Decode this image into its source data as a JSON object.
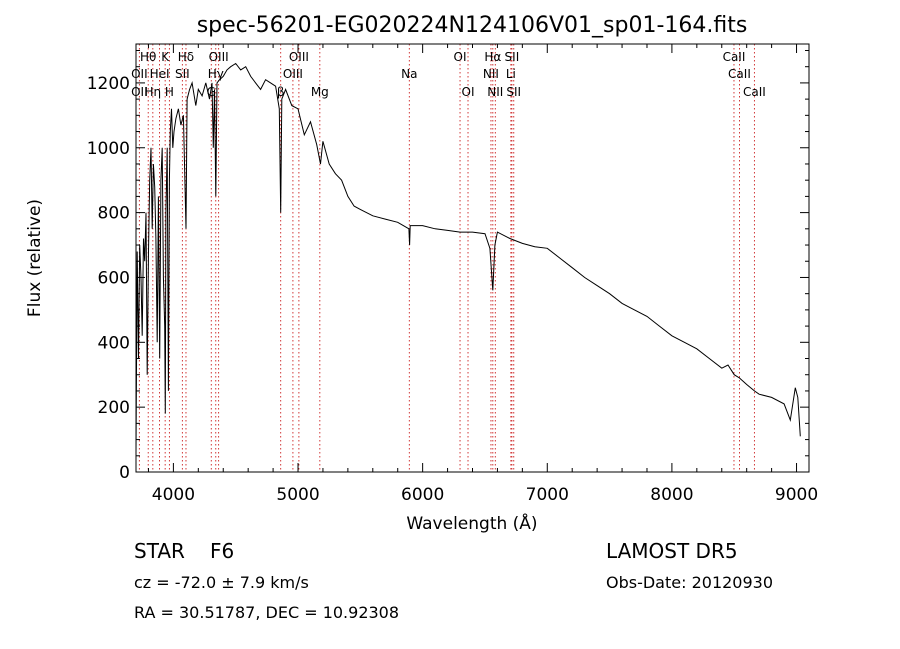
{
  "chart_data": {
    "type": "line",
    "title": "spec-56201-EG020224N124106V01_sp01-164.fits",
    "xlabel": "Wavelength (Å)",
    "ylabel": "Flux (relative)",
    "xlim": [
      3700,
      9100
    ],
    "ylim": [
      0,
      1320
    ],
    "xticks": [
      4000,
      5000,
      6000,
      7000,
      8000,
      9000
    ],
    "yticks": [
      0,
      200,
      400,
      600,
      800,
      1000,
      1200
    ],
    "grid": false,
    "series": [
      {
        "x": [
          3700,
          3710,
          3720,
          3730,
          3740,
          3750,
          3760,
          3770,
          3780,
          3790,
          3800,
          3810,
          3820,
          3830,
          3840,
          3850,
          3860,
          3870,
          3880,
          3890,
          3900,
          3910,
          3920,
          3930,
          3935,
          3940,
          3950,
          3960,
          3968,
          3975,
          3985,
          3995,
          4005,
          4020,
          4040,
          4060,
          4080,
          4101,
          4110,
          4130,
          4150,
          4180,
          4200,
          4230,
          4260,
          4290,
          4310,
          4320,
          4330,
          4340,
          4350,
          4370,
          4400,
          4430,
          4460,
          4500,
          4540,
          4580,
          4620,
          4660,
          4700,
          4740,
          4780,
          4820,
          4850,
          4861,
          4870,
          4900,
          4950,
          5000,
          5050,
          5100,
          5150,
          5180,
          5200,
          5250,
          5300,
          5350,
          5400,
          5450,
          5500,
          5600,
          5700,
          5800,
          5890,
          5895,
          5900,
          6000,
          6100,
          6200,
          6300,
          6400,
          6500,
          6540,
          6563,
          6580,
          6600,
          6700,
          6800,
          6900,
          7000,
          7100,
          7200,
          7300,
          7400,
          7500,
          7600,
          7700,
          7800,
          7900,
          8000,
          8100,
          8200,
          8300,
          8400,
          8450,
          8500,
          8542,
          8600,
          8662,
          8700,
          8800,
          8900,
          8950,
          8990,
          9010,
          9030
        ],
        "y": [
          60,
          680,
          350,
          700,
          600,
          420,
          720,
          650,
          800,
          300,
          680,
          900,
          1000,
          750,
          950,
          880,
          720,
          400,
          850,
          350,
          900,
          1000,
          600,
          450,
          180,
          800,
          1000,
          250,
          900,
          1050,
          1120,
          1000,
          1050,
          1090,
          1120,
          1070,
          1100,
          750,
          1150,
          1180,
          1200,
          1130,
          1180,
          1160,
          1200,
          1150,
          1200,
          1000,
          1180,
          850,
          1200,
          1210,
          1220,
          1240,
          1250,
          1260,
          1240,
          1250,
          1220,
          1200,
          1180,
          1210,
          1200,
          1190,
          1120,
          800,
          1150,
          1180,
          1130,
          1120,
          1040,
          1080,
          1010,
          950,
          1020,
          950,
          920,
          900,
          850,
          820,
          810,
          790,
          780,
          770,
          750,
          700,
          760,
          760,
          750,
          745,
          740,
          740,
          735,
          690,
          560,
          700,
          740,
          720,
          705,
          695,
          690,
          660,
          630,
          600,
          575,
          550,
          520,
          500,
          480,
          450,
          420,
          400,
          380,
          350,
          320,
          330,
          300,
          290,
          270,
          250,
          240,
          230,
          210,
          160,
          260,
          230,
          110
        ]
      }
    ],
    "lines": [
      {
        "name": "Hθ",
        "x": 3798,
        "row": 0
      },
      {
        "name": "K",
        "x": 3934,
        "row": 0
      },
      {
        "name": "Hδ",
        "x": 4101,
        "row": 0
      },
      {
        "name": "OIII",
        "x": 4363,
        "row": 0
      },
      {
        "name": "OIII",
        "x": 5007,
        "row": 0
      },
      {
        "name": "OI",
        "x": 6300,
        "row": 0
      },
      {
        "name": "Hα",
        "x": 6563,
        "row": 0
      },
      {
        "name": "SII",
        "x": 6716,
        "row": 0
      },
      {
        "name": "CaII",
        "x": 8498,
        "row": 0
      },
      {
        "name": "OII",
        "x": 3727,
        "row": 1
      },
      {
        "name": "HeI",
        "x": 3889,
        "row": 1
      },
      {
        "name": "SII",
        "x": 4072,
        "row": 1
      },
      {
        "name": "Hγ",
        "x": 4340,
        "row": 1
      },
      {
        "name": "OIII",
        "x": 4959,
        "row": 1
      },
      {
        "name": "Na",
        "x": 5893,
        "row": 1
      },
      {
        "name": "NII",
        "x": 6548,
        "row": 1
      },
      {
        "name": "Li",
        "x": 6708,
        "row": 1
      },
      {
        "name": "CaII",
        "x": 8542,
        "row": 1
      },
      {
        "name": "OII",
        "x": 3727,
        "row": 2
      },
      {
        "name": "Hη",
        "x": 3835,
        "row": 2
      },
      {
        "name": "H",
        "x": 3968,
        "row": 2
      },
      {
        "name": "G",
        "x": 4304,
        "row": 2
      },
      {
        "name": "β",
        "x": 4861,
        "row": 2
      },
      {
        "name": "Mg",
        "x": 5175,
        "row": 2
      },
      {
        "name": "OI",
        "x": 6364,
        "row": 2
      },
      {
        "name": "NII",
        "x": 6583,
        "row": 2
      },
      {
        "name": "SII",
        "x": 6731,
        "row": 2
      },
      {
        "name": "CaII",
        "x": 8662,
        "row": 2
      }
    ]
  },
  "info": {
    "class": "STAR",
    "subclass": "F6",
    "survey": "LAMOST DR5",
    "cz": "cz = -72.0 ± 7.9 km/s",
    "obs_date": "Obs-Date: 20120930",
    "coords": "RA =  30.51787, DEC =  10.92308"
  },
  "colors": {
    "line_marker": "#cc2222",
    "spectrum": "#000000"
  }
}
